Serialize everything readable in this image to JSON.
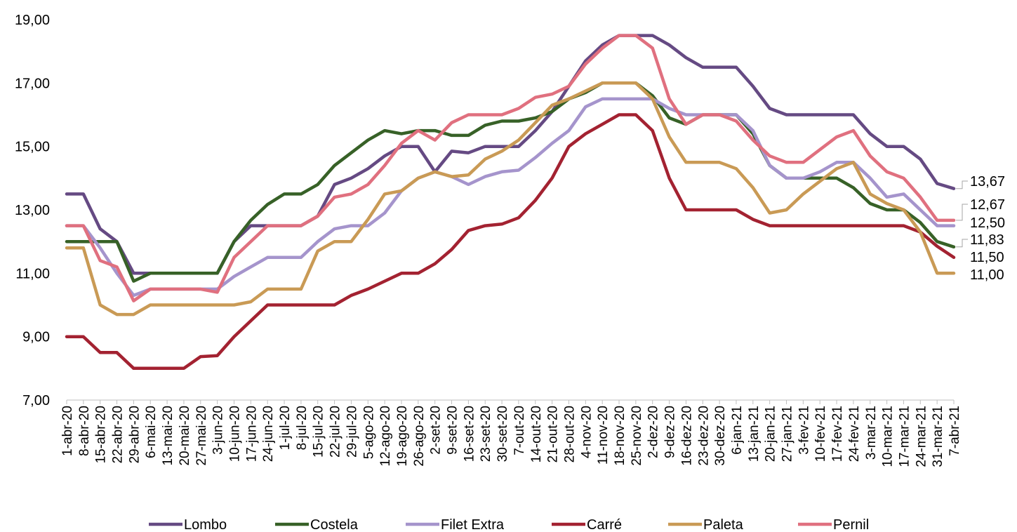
{
  "chart_data": {
    "type": "line",
    "title": "",
    "xlabel": "",
    "ylabel": "",
    "ylim": [
      7,
      19
    ],
    "yticks": [
      "7,00",
      "9,00",
      "11,00",
      "13,00",
      "15,00",
      "17,00",
      "19,00"
    ],
    "grid": false,
    "legend_position": "bottom",
    "categories": [
      "1-abr-20",
      "8-abr-20",
      "15-abr-20",
      "22-abr-20",
      "29-abr-20",
      "6-mai-20",
      "13-mai-20",
      "20-mai-20",
      "27-mai-20",
      "3-jun-20",
      "10-jun-20",
      "17-jun-20",
      "24-jun-20",
      "1-jul-20",
      "8-jul-20",
      "15-jul-20",
      "22-jul-20",
      "29-jul-20",
      "5-ago-20",
      "12-ago-20",
      "19-ago-20",
      "26-ago-20",
      "2-set-20",
      "9-set-20",
      "16-set-20",
      "23-set-20",
      "30-set-20",
      "7-out-20",
      "14-out-20",
      "21-out-20",
      "28-out-20",
      "4-nov-20",
      "11-nov-20",
      "18-nov-20",
      "25-nov-20",
      "2-dez-20",
      "9-dez-20",
      "16-dez-20",
      "23-dez-20",
      "30-dez-20",
      "6-jan-21",
      "13-jan-21",
      "20-jan-21",
      "27-jan-21",
      "3-fev-21",
      "10-fev-21",
      "17-fev-21",
      "24-fev-21",
      "3-mar-21",
      "10-mar-21",
      "17-mar-21",
      "24-mar-21",
      "31-mar-21",
      "7-abr-21"
    ],
    "series": [
      {
        "name": "Lombo",
        "color": "#654A83",
        "values": [
          13.5,
          13.5,
          12.4,
          12.0,
          11.0,
          11.0,
          11.0,
          11.0,
          11.0,
          11.0,
          12.0,
          12.5,
          12.5,
          12.5,
          12.5,
          12.8,
          13.8,
          14.0,
          14.3,
          14.7,
          15.0,
          15.0,
          14.2,
          14.85,
          14.8,
          15.0,
          15.0,
          15.0,
          15.5,
          16.1,
          16.9,
          17.7,
          18.2,
          18.5,
          18.5,
          18.5,
          18.2,
          17.8,
          17.5,
          17.5,
          17.5,
          16.9,
          16.2,
          16.0,
          16.0,
          16.0,
          16.0,
          16.0,
          15.4,
          15.0,
          15.0,
          14.6,
          13.83,
          13.67
        ]
      },
      {
        "name": "Costela",
        "color": "#376127",
        "values": [
          12.0,
          12.0,
          12.0,
          12.0,
          10.75,
          11.0,
          11.0,
          11.0,
          11.0,
          11.0,
          12.0,
          12.67,
          13.17,
          13.5,
          13.5,
          13.8,
          14.4,
          14.8,
          15.2,
          15.5,
          15.4,
          15.5,
          15.5,
          15.35,
          15.35,
          15.67,
          15.8,
          15.8,
          15.9,
          16.1,
          16.5,
          16.7,
          17.0,
          17.0,
          17.0,
          16.6,
          15.9,
          15.7,
          16.0,
          16.0,
          16.0,
          15.4,
          14.4,
          14.0,
          14.0,
          14.0,
          14.0,
          13.7,
          13.2,
          13.0,
          13.0,
          12.6,
          12.0,
          11.83
        ]
      },
      {
        "name": "Filet Extra",
        "color": "#A594CC",
        "values": [
          12.5,
          12.5,
          11.8,
          11.0,
          10.3,
          10.5,
          10.5,
          10.5,
          10.5,
          10.5,
          10.9,
          11.2,
          11.5,
          11.5,
          11.5,
          12.0,
          12.4,
          12.5,
          12.5,
          12.9,
          13.6,
          14.0,
          14.2,
          14.05,
          13.8,
          14.05,
          14.2,
          14.25,
          14.65,
          15.1,
          15.5,
          16.25,
          16.5,
          16.5,
          16.5,
          16.5,
          16.2,
          16.0,
          16.0,
          16.0,
          16.0,
          15.5,
          14.4,
          14.0,
          14.0,
          14.2,
          14.5,
          14.5,
          14.0,
          13.4,
          13.5,
          13.0,
          12.5,
          12.5
        ]
      },
      {
        "name": "Carré",
        "color": "#A32231",
        "values": [
          9.0,
          9.0,
          8.5,
          8.5,
          8.0,
          8.0,
          8.0,
          8.0,
          8.37,
          8.4,
          9.0,
          9.5,
          10.0,
          10.0,
          10.0,
          10.0,
          10.0,
          10.3,
          10.5,
          10.75,
          11.0,
          11.0,
          11.3,
          11.75,
          12.35,
          12.5,
          12.55,
          12.75,
          13.3,
          14.0,
          15.0,
          15.4,
          15.7,
          16.0,
          16.0,
          15.5,
          14.0,
          13.0,
          13.0,
          13.0,
          13.0,
          12.7,
          12.5,
          12.5,
          12.5,
          12.5,
          12.5,
          12.5,
          12.5,
          12.5,
          12.5,
          12.3,
          11.85,
          11.5
        ]
      },
      {
        "name": "Paleta",
        "color": "#C99A55",
        "values": [
          11.8,
          11.8,
          10.0,
          9.7,
          9.7,
          10.0,
          10.0,
          10.0,
          10.0,
          10.0,
          10.0,
          10.1,
          10.5,
          10.5,
          10.5,
          11.7,
          12.0,
          12.0,
          12.7,
          13.5,
          13.6,
          14.0,
          14.2,
          14.05,
          14.1,
          14.6,
          14.85,
          15.2,
          15.75,
          16.3,
          16.5,
          16.75,
          17.0,
          17.0,
          17.0,
          16.5,
          15.3,
          14.5,
          14.5,
          14.5,
          14.3,
          13.7,
          12.9,
          13.0,
          13.5,
          13.9,
          14.3,
          14.5,
          13.5,
          13.2,
          13.0,
          12.3,
          11.0,
          11.0
        ]
      },
      {
        "name": "Pernil",
        "color": "#E0707F",
        "values": [
          12.5,
          12.5,
          11.4,
          11.2,
          10.13,
          10.5,
          10.5,
          10.5,
          10.5,
          10.4,
          11.5,
          12.0,
          12.5,
          12.5,
          12.5,
          12.8,
          13.4,
          13.5,
          13.8,
          14.4,
          15.1,
          15.5,
          15.2,
          15.75,
          16.0,
          16.0,
          16.0,
          16.2,
          16.55,
          16.65,
          16.9,
          17.6,
          18.1,
          18.5,
          18.5,
          18.1,
          16.5,
          15.7,
          16.0,
          16.0,
          15.8,
          15.2,
          14.7,
          14.5,
          14.5,
          14.9,
          15.3,
          15.5,
          14.7,
          14.2,
          14.0,
          13.4,
          12.67,
          12.67
        ]
      }
    ],
    "end_labels": [
      "13,67",
      "12,67",
      "12,50",
      "11,83",
      "11,50",
      "11,00"
    ]
  }
}
